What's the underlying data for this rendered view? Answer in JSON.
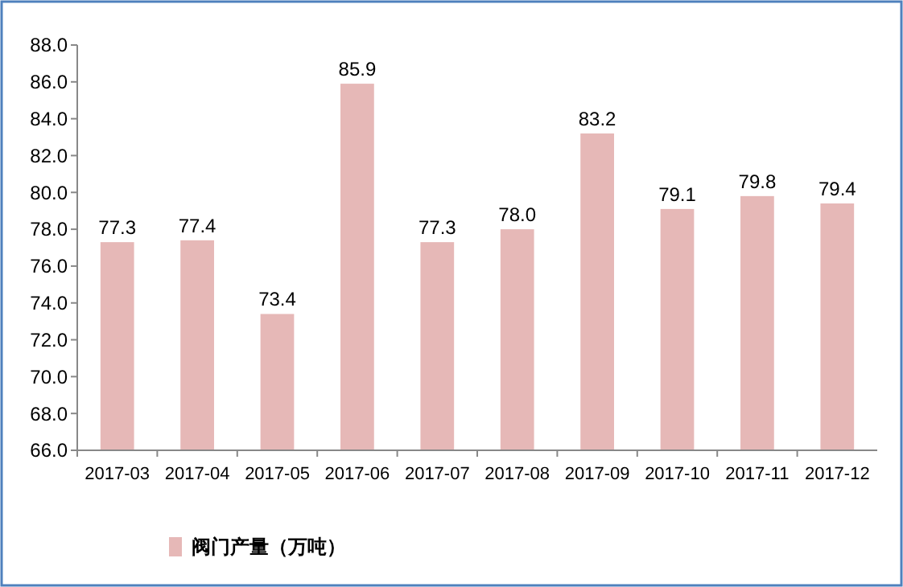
{
  "chart_data": {
    "type": "bar",
    "categories": [
      "2017-03",
      "2017-04",
      "2017-05",
      "2017-06",
      "2017-07",
      "2017-08",
      "2017-09",
      "2017-10",
      "2017-11",
      "2017-12"
    ],
    "series": [
      {
        "name": "阀门产量（万吨）",
        "color": "#e6b8b7",
        "values": [
          77.3,
          77.4,
          73.4,
          85.9,
          77.3,
          78.0,
          83.2,
          79.1,
          79.8,
          79.4
        ],
        "value_labels": [
          "77.3",
          "77.4",
          "73.4",
          "85.9",
          "77.3",
          "78.0",
          "83.2",
          "79.1",
          "79.8",
          "79.4"
        ]
      }
    ],
    "ylim": [
      66,
      88
    ],
    "yticks": [
      {
        "value": 66,
        "label": "66.0"
      },
      {
        "value": 68,
        "label": "68.0"
      },
      {
        "value": 70,
        "label": "70.0"
      },
      {
        "value": 72,
        "label": "72.0"
      },
      {
        "value": 74,
        "label": "74.0"
      },
      {
        "value": 76,
        "label": "76.0"
      },
      {
        "value": 78,
        "label": "78.0"
      },
      {
        "value": 80,
        "label": "80.0"
      },
      {
        "value": 82,
        "label": "82.0"
      },
      {
        "value": 84,
        "label": "84.0"
      },
      {
        "value": 86,
        "label": "86.0"
      },
      {
        "value": 88,
        "label": "88.0"
      }
    ],
    "grid": false,
    "legend": "bottom left"
  }
}
